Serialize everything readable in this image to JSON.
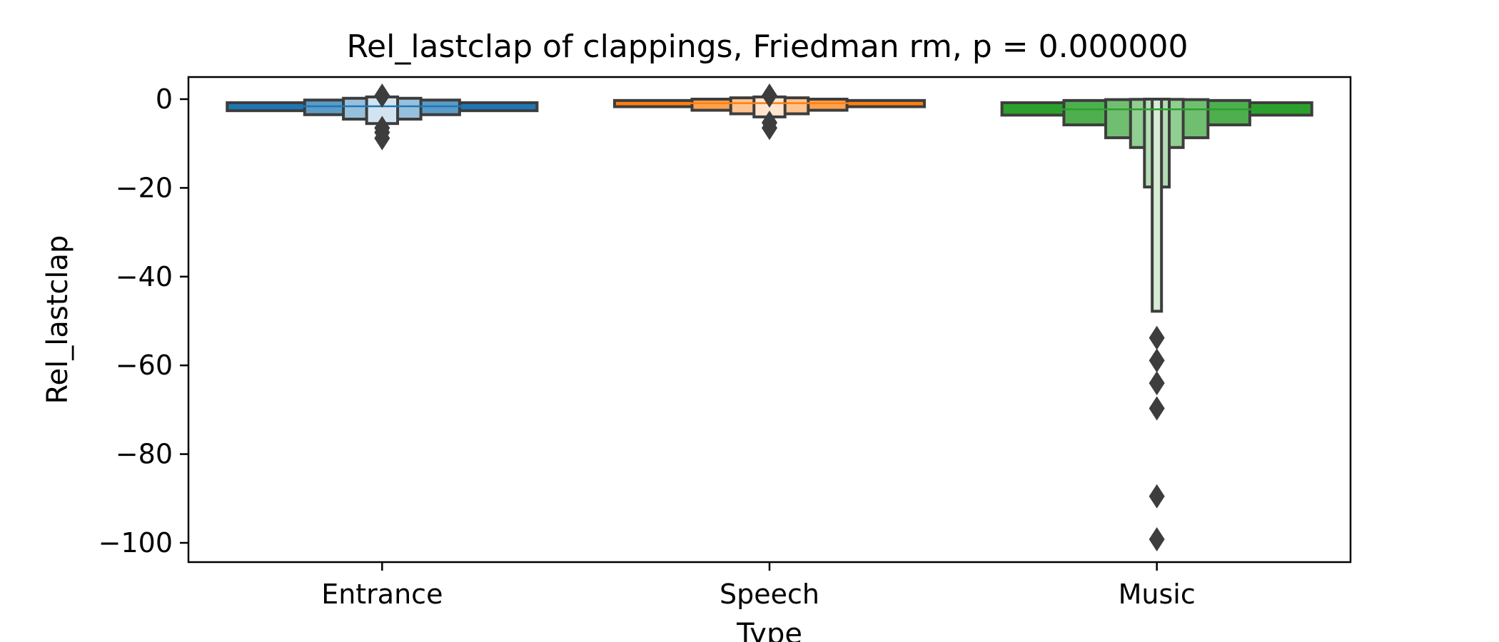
{
  "chart_data": {
    "type": "boxen",
    "title": "Rel_lastclap of clappings, Friedman rm, p = 0.000000",
    "xlabel": "Type",
    "ylabel": "Rel_lastclap",
    "ylim": [
      -105,
      5
    ],
    "yticks": [
      0,
      -20,
      -40,
      -60,
      -80,
      -100
    ],
    "ytick_labels": [
      "0",
      "−20",
      "−40",
      "−60",
      "−80",
      "−100"
    ],
    "grid": false,
    "legend": "none",
    "categories": [
      "Entrance",
      "Speech",
      "Music"
    ],
    "series": [
      {
        "category": "Entrance",
        "color": "#1f77b4",
        "median": -1.6,
        "boxes": [
          {
            "low": -2.6,
            "high": -0.8,
            "width": 1.0
          },
          {
            "low": -3.5,
            "high": -0.2,
            "width": 0.5
          },
          {
            "low": -4.5,
            "high": 0.2,
            "width": 0.25
          },
          {
            "low": -5.5,
            "high": 0.5,
            "width": 0.1
          }
        ],
        "outliers": [
          0.8,
          -6.5,
          -7.5,
          -8.8
        ]
      },
      {
        "category": "Speech",
        "color": "#ff7f0e",
        "median": -0.9,
        "boxes": [
          {
            "low": -1.7,
            "high": -0.3,
            "width": 1.0
          },
          {
            "low": -2.5,
            "high": 0.0,
            "width": 0.5
          },
          {
            "low": -3.3,
            "high": 0.3,
            "width": 0.25
          },
          {
            "low": -4.0,
            "high": 0.5,
            "width": 0.1
          }
        ],
        "outliers": [
          0.8,
          -5.3,
          -6.5
        ]
      },
      {
        "category": "Music",
        "color": "#2ca02c",
        "median": -2.3,
        "boxes": [
          {
            "low": -3.6,
            "high": -0.8,
            "width": 1.0
          },
          {
            "low": -5.8,
            "high": -0.3,
            "width": 0.6
          },
          {
            "low": -8.7,
            "high": -0.1,
            "width": 0.33
          },
          {
            "low": -10.9,
            "high": -0.05,
            "width": 0.17
          },
          {
            "low": -19.8,
            "high": 0.0,
            "width": 0.08
          },
          {
            "low": -47.8,
            "high": 0.0,
            "width": 0.03
          }
        ],
        "outliers": [
          -53.8,
          -58.9,
          -64.0,
          -69.7,
          -89.5,
          -99.2
        ]
      }
    ]
  }
}
